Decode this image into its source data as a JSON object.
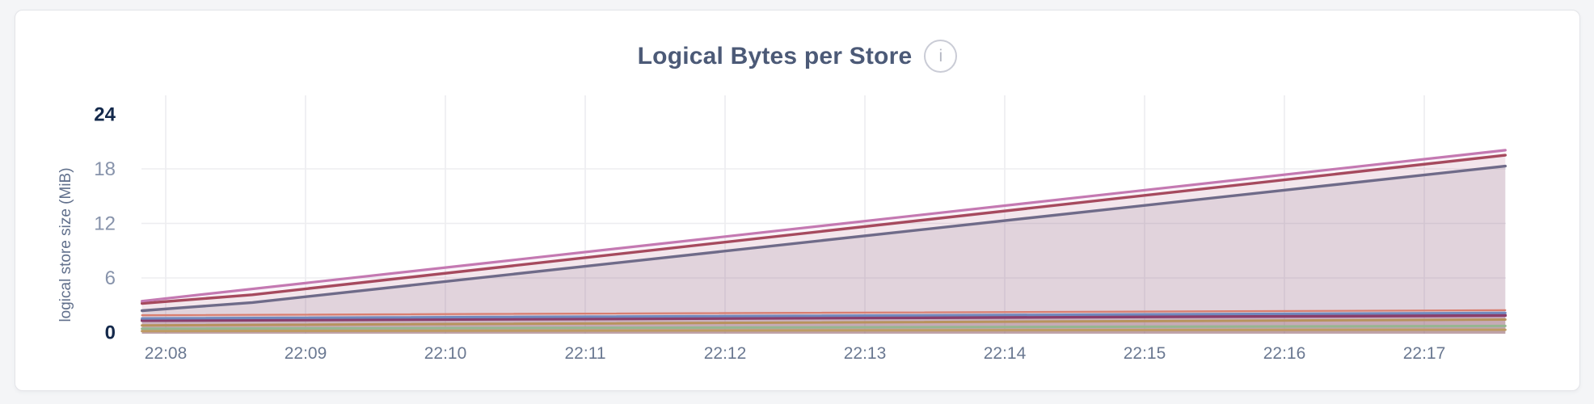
{
  "page": {
    "background_color": "#F4F5F7",
    "card_background": "#FFFFFF",
    "card_border_color": "#E3E4E8"
  },
  "chart": {
    "title": "Logical Bytes per Store",
    "info_icon_glyph": "i",
    "ylabel": "logical store size (MiB)"
  },
  "chart_data": {
    "type": "area",
    "title": "Logical Bytes per Store",
    "xlabel": "",
    "ylabel": "logical store size (MiB)",
    "ylim": [
      0,
      24
    ],
    "yticks": [
      0,
      6,
      12,
      18,
      24
    ],
    "ytick_major": [
      0,
      24
    ],
    "x_tick_labels": [
      "22:08",
      "22:09",
      "22:10",
      "22:11",
      "22:12",
      "22:13",
      "22:14",
      "22:15",
      "22:16",
      "22:17"
    ],
    "x_minutes_range_rel_first_tick": [
      -0.17,
      9.58
    ],
    "grid": true,
    "legend": false,
    "colors": {
      "gridline": "#EDEDF0",
      "y_tick_minor": "#8793AB",
      "y_tick_major": "#14294B",
      "x_tick": "#6A7891",
      "title": "#4C5A77",
      "axis_label": "#61708C"
    },
    "series": [
      {
        "id": "series-1",
        "color": "#C479B2",
        "width": 3.2,
        "fill_opacity": 0.09,
        "points": [
          [
            -0.17,
            3.45
          ],
          [
            9.58,
            20.05
          ]
        ]
      },
      {
        "id": "series-2",
        "color": "#A64A5E",
        "width": 3.4,
        "fill_opacity": 0.08,
        "points": [
          [
            -0.17,
            3.2
          ],
          [
            0.62,
            4.15
          ],
          [
            9.58,
            19.5
          ]
        ]
      },
      {
        "id": "series-3",
        "color": "#6F6B89",
        "width": 3.4,
        "fill_opacity": 0.15,
        "points": [
          [
            -0.17,
            2.4
          ],
          [
            0.62,
            3.3
          ],
          [
            9.58,
            18.3
          ]
        ]
      },
      {
        "id": "series-4",
        "color": "#D97E6F",
        "width": 2.2,
        "fill_opacity": 0.12,
        "points": [
          [
            -0.17,
            1.9
          ],
          [
            9.58,
            2.45
          ]
        ]
      },
      {
        "id": "series-5",
        "color": "#7189BE",
        "width": 3.0,
        "fill_opacity": 0.12,
        "points": [
          [
            -0.17,
            1.55
          ],
          [
            9.58,
            2.15
          ]
        ]
      },
      {
        "id": "series-6",
        "color": "#8A3E6B",
        "width": 3.8,
        "fill_opacity": 0.12,
        "points": [
          [
            -0.17,
            1.32
          ],
          [
            9.58,
            1.88
          ]
        ]
      },
      {
        "id": "series-7",
        "color": "#B8935D",
        "width": 3.0,
        "fill_opacity": 0.12,
        "points": [
          [
            -0.17,
            0.78
          ],
          [
            9.58,
            1.42
          ]
        ]
      },
      {
        "id": "series-8",
        "color": "#96B690",
        "width": 3.0,
        "fill_opacity": 0.12,
        "points": [
          [
            -0.17,
            0.42
          ],
          [
            9.58,
            0.72
          ]
        ]
      },
      {
        "id": "series-9",
        "color": "#BE9B64",
        "width": 3.0,
        "fill_opacity": 0.12,
        "points": [
          [
            -0.17,
            0.16
          ],
          [
            9.58,
            0.3
          ]
        ]
      }
    ]
  }
}
